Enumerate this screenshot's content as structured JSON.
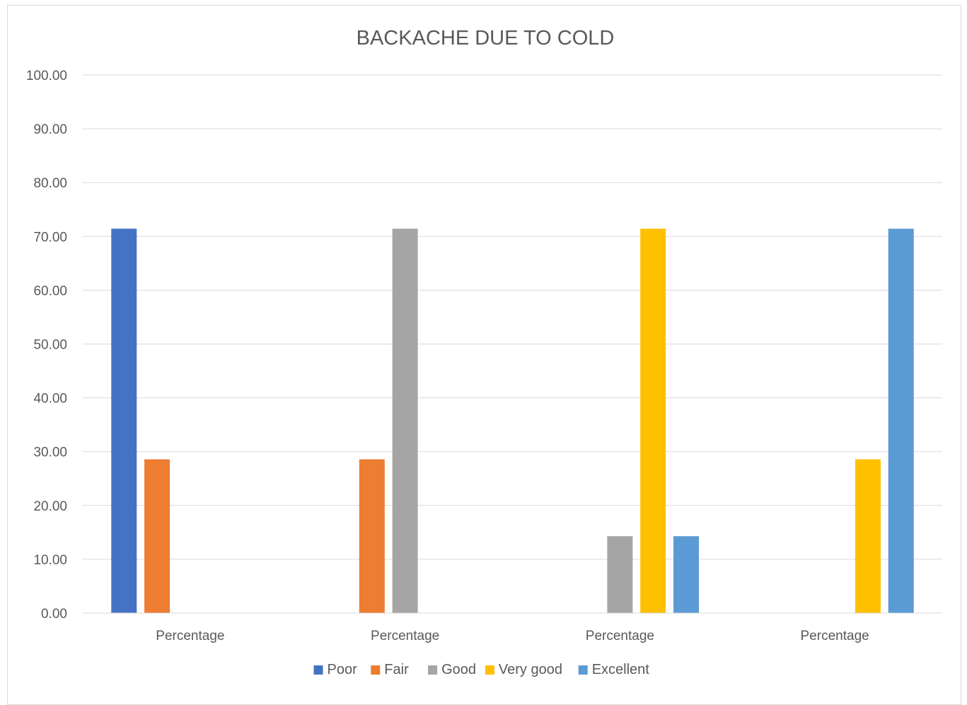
{
  "chart_data": {
    "type": "bar",
    "title": "BACKACHE DUE TO COLD",
    "xlabel": "",
    "ylabel": "",
    "categories": [
      "Percentage",
      "Percentage",
      "Percentage",
      "Percentage"
    ],
    "ylim": [
      0,
      100
    ],
    "ytick_step": 10,
    "ytick_labels": [
      "0.00",
      "10.00",
      "20.00",
      "30.00",
      "40.00",
      "50.00",
      "60.00",
      "70.00",
      "80.00",
      "90.00",
      "100.00"
    ],
    "grid": true,
    "legend_position": "bottom",
    "series": [
      {
        "name": "Poor",
        "color": "#4472C4",
        "values": [
          71.43,
          0,
          0,
          0
        ]
      },
      {
        "name": "Fair",
        "color": "#ED7D31",
        "values": [
          28.57,
          28.57,
          0,
          0
        ]
      },
      {
        "name": "Good",
        "color": "#A5A5A5",
        "values": [
          0,
          71.43,
          14.29,
          0
        ]
      },
      {
        "name": "Very good",
        "color": "#FFC000",
        "values": [
          0,
          0,
          71.43,
          28.57
        ]
      },
      {
        "name": "Excellent",
        "color": "#5B9BD5",
        "values": [
          0,
          0,
          14.29,
          71.43
        ]
      }
    ]
  }
}
